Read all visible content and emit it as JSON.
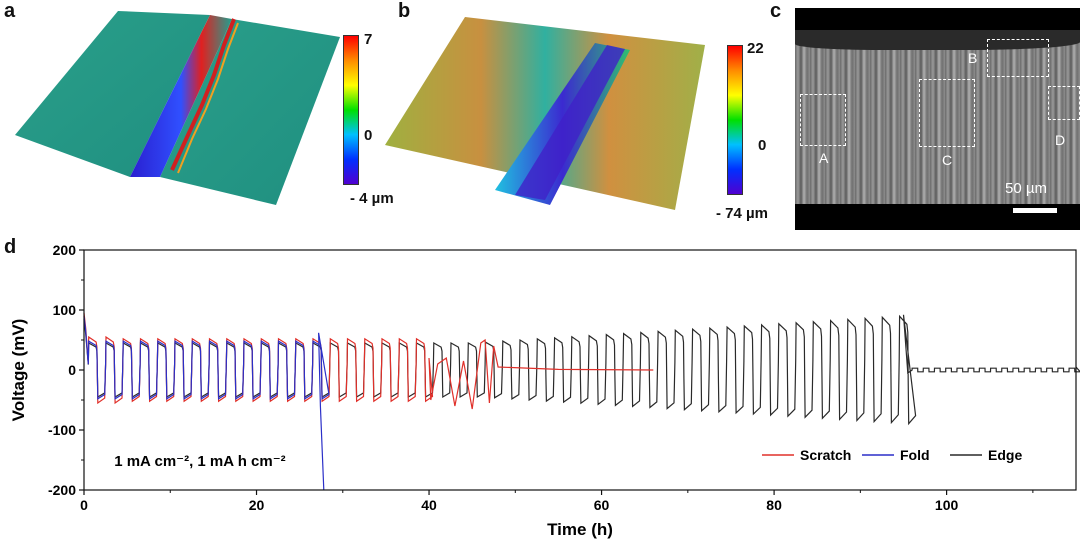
{
  "panels": {
    "a": {
      "letter": "a",
      "colorbar": {
        "max": "7",
        "mid": "0",
        "min": "- 4 µm"
      },
      "colormap": [
        "#ff0000",
        "#ff8c00",
        "#ffff00",
        "#00e000",
        "#00c0ff",
        "#0030ff",
        "#5000d0"
      ]
    },
    "b": {
      "letter": "b",
      "colorbar": {
        "max": "22",
        "mid": "0",
        "min": "- 74 µm"
      },
      "colormap": [
        "#ff0000",
        "#ff8c00",
        "#ffff00",
        "#00e000",
        "#00c0ff",
        "#0030ff",
        "#5000d0"
      ]
    },
    "c": {
      "letter": "c",
      "regions": [
        "A",
        "B",
        "C",
        "D"
      ],
      "scale_bar_label": "50 µm"
    },
    "d": {
      "letter": "d"
    }
  },
  "chart_data": {
    "type": "line",
    "xlabel": "Time (h)",
    "ylabel": "Voltage (mV)",
    "xlim": [
      0,
      115
    ],
    "ylim": [
      -200,
      200
    ],
    "xticks": [
      0,
      20,
      40,
      60,
      80,
      100
    ],
    "yticks": [
      -200,
      -100,
      0,
      100,
      200
    ],
    "annotation": "1 mA cm⁻², 1 mA h cm⁻²",
    "legend_position": "bottom-right",
    "series": [
      {
        "name": "Scratch",
        "color": "#e0302a",
        "cycle_period_h": 2,
        "description": "galvanostatic cycling; short circuit near 47 h",
        "points": [
          [
            0,
            95
          ],
          [
            1,
            55
          ],
          [
            2,
            -65
          ],
          [
            10,
            52
          ],
          [
            20,
            50
          ],
          [
            27.5,
            -60
          ],
          [
            36,
            48
          ],
          [
            40,
            -55
          ],
          [
            42,
            20
          ],
          [
            44,
            -65
          ],
          [
            46,
            45
          ],
          [
            47.5,
            -55
          ],
          [
            48,
            5
          ],
          [
            66,
            0
          ]
        ]
      },
      {
        "name": "Fold",
        "color": "#2b2fc8",
        "cycle_period_h": 2,
        "description": "galvanostatic cycling; failure near 27.5 h",
        "points": [
          [
            0,
            90
          ],
          [
            1,
            50
          ],
          [
            2,
            -55
          ],
          [
            10,
            47
          ],
          [
            20,
            46
          ],
          [
            27.3,
            62
          ],
          [
            27.6,
            -130
          ],
          [
            27.8,
            -200
          ]
        ]
      },
      {
        "name": "Edge",
        "color": "#2a2a2a",
        "cycle_period_h": 2,
        "description": "galvanostatic cycling; amplitude grows then short circuit near 95 h",
        "points": [
          [
            0,
            85
          ],
          [
            1,
            48
          ],
          [
            2,
            -52
          ],
          [
            20,
            48
          ],
          [
            40,
            -50
          ],
          [
            50,
            52
          ],
          [
            60,
            65
          ],
          [
            70,
            78
          ],
          [
            80,
            85
          ],
          [
            90,
            90
          ],
          [
            94.5,
            -90
          ],
          [
            95,
            92
          ],
          [
            95.5,
            -5
          ],
          [
            100,
            0
          ],
          [
            115,
            5
          ]
        ]
      }
    ]
  }
}
